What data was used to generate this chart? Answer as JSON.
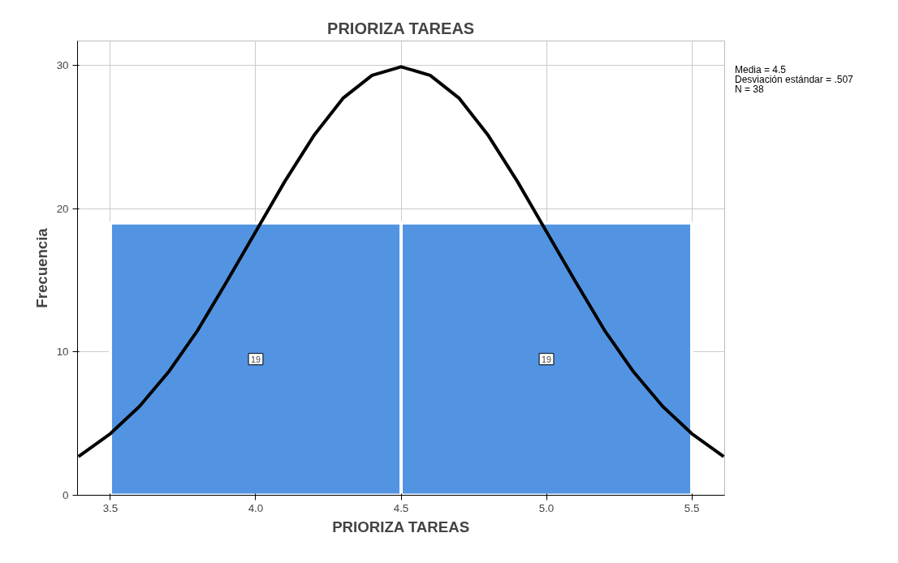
{
  "chart_data": {
    "type": "histogram",
    "title": "PRIORIZA TAREAS",
    "xlabel": "PRIORIZA TAREAS",
    "ylabel": "Frecuencia",
    "bins": [
      3.5,
      4.5,
      5.5
    ],
    "values": [
      19,
      19
    ],
    "color": "#5294e2",
    "value_labels": [
      "19",
      "19"
    ],
    "series": [
      {
        "type": "line",
        "color": "#000000",
        "x": [
          3.39,
          3.5,
          3.6,
          3.7,
          3.8,
          3.9,
          4.0,
          4.1,
          4.2,
          4.3,
          4.4,
          4.5,
          4.6,
          4.7,
          4.8,
          4.9,
          5.0,
          5.1,
          5.2,
          5.3,
          5.4,
          5.5,
          5.61
        ],
        "values": [
          2.7,
          4.3,
          6.2,
          8.6,
          11.5,
          14.9,
          18.4,
          21.9,
          25.1,
          27.7,
          29.3,
          29.9,
          29.3,
          27.7,
          25.1,
          21.9,
          18.4,
          14.9,
          11.5,
          8.6,
          6.2,
          4.3,
          2.7
        ]
      }
    ],
    "xlim": [
      3.387,
      5.613
    ],
    "ylim": [
      0,
      31.7
    ],
    "xticks": [
      3.5,
      {
        "value": 4,
        "label": "4.0"
      },
      4.5,
      {
        "value": 5,
        "label": "5.0"
      },
      5.5
    ],
    "yticks": [
      0,
      10,
      20,
      30
    ],
    "grid": true,
    "annotations": [
      "Media = 4.5",
      "Desviación estándar = .507",
      "N = 38"
    ]
  }
}
